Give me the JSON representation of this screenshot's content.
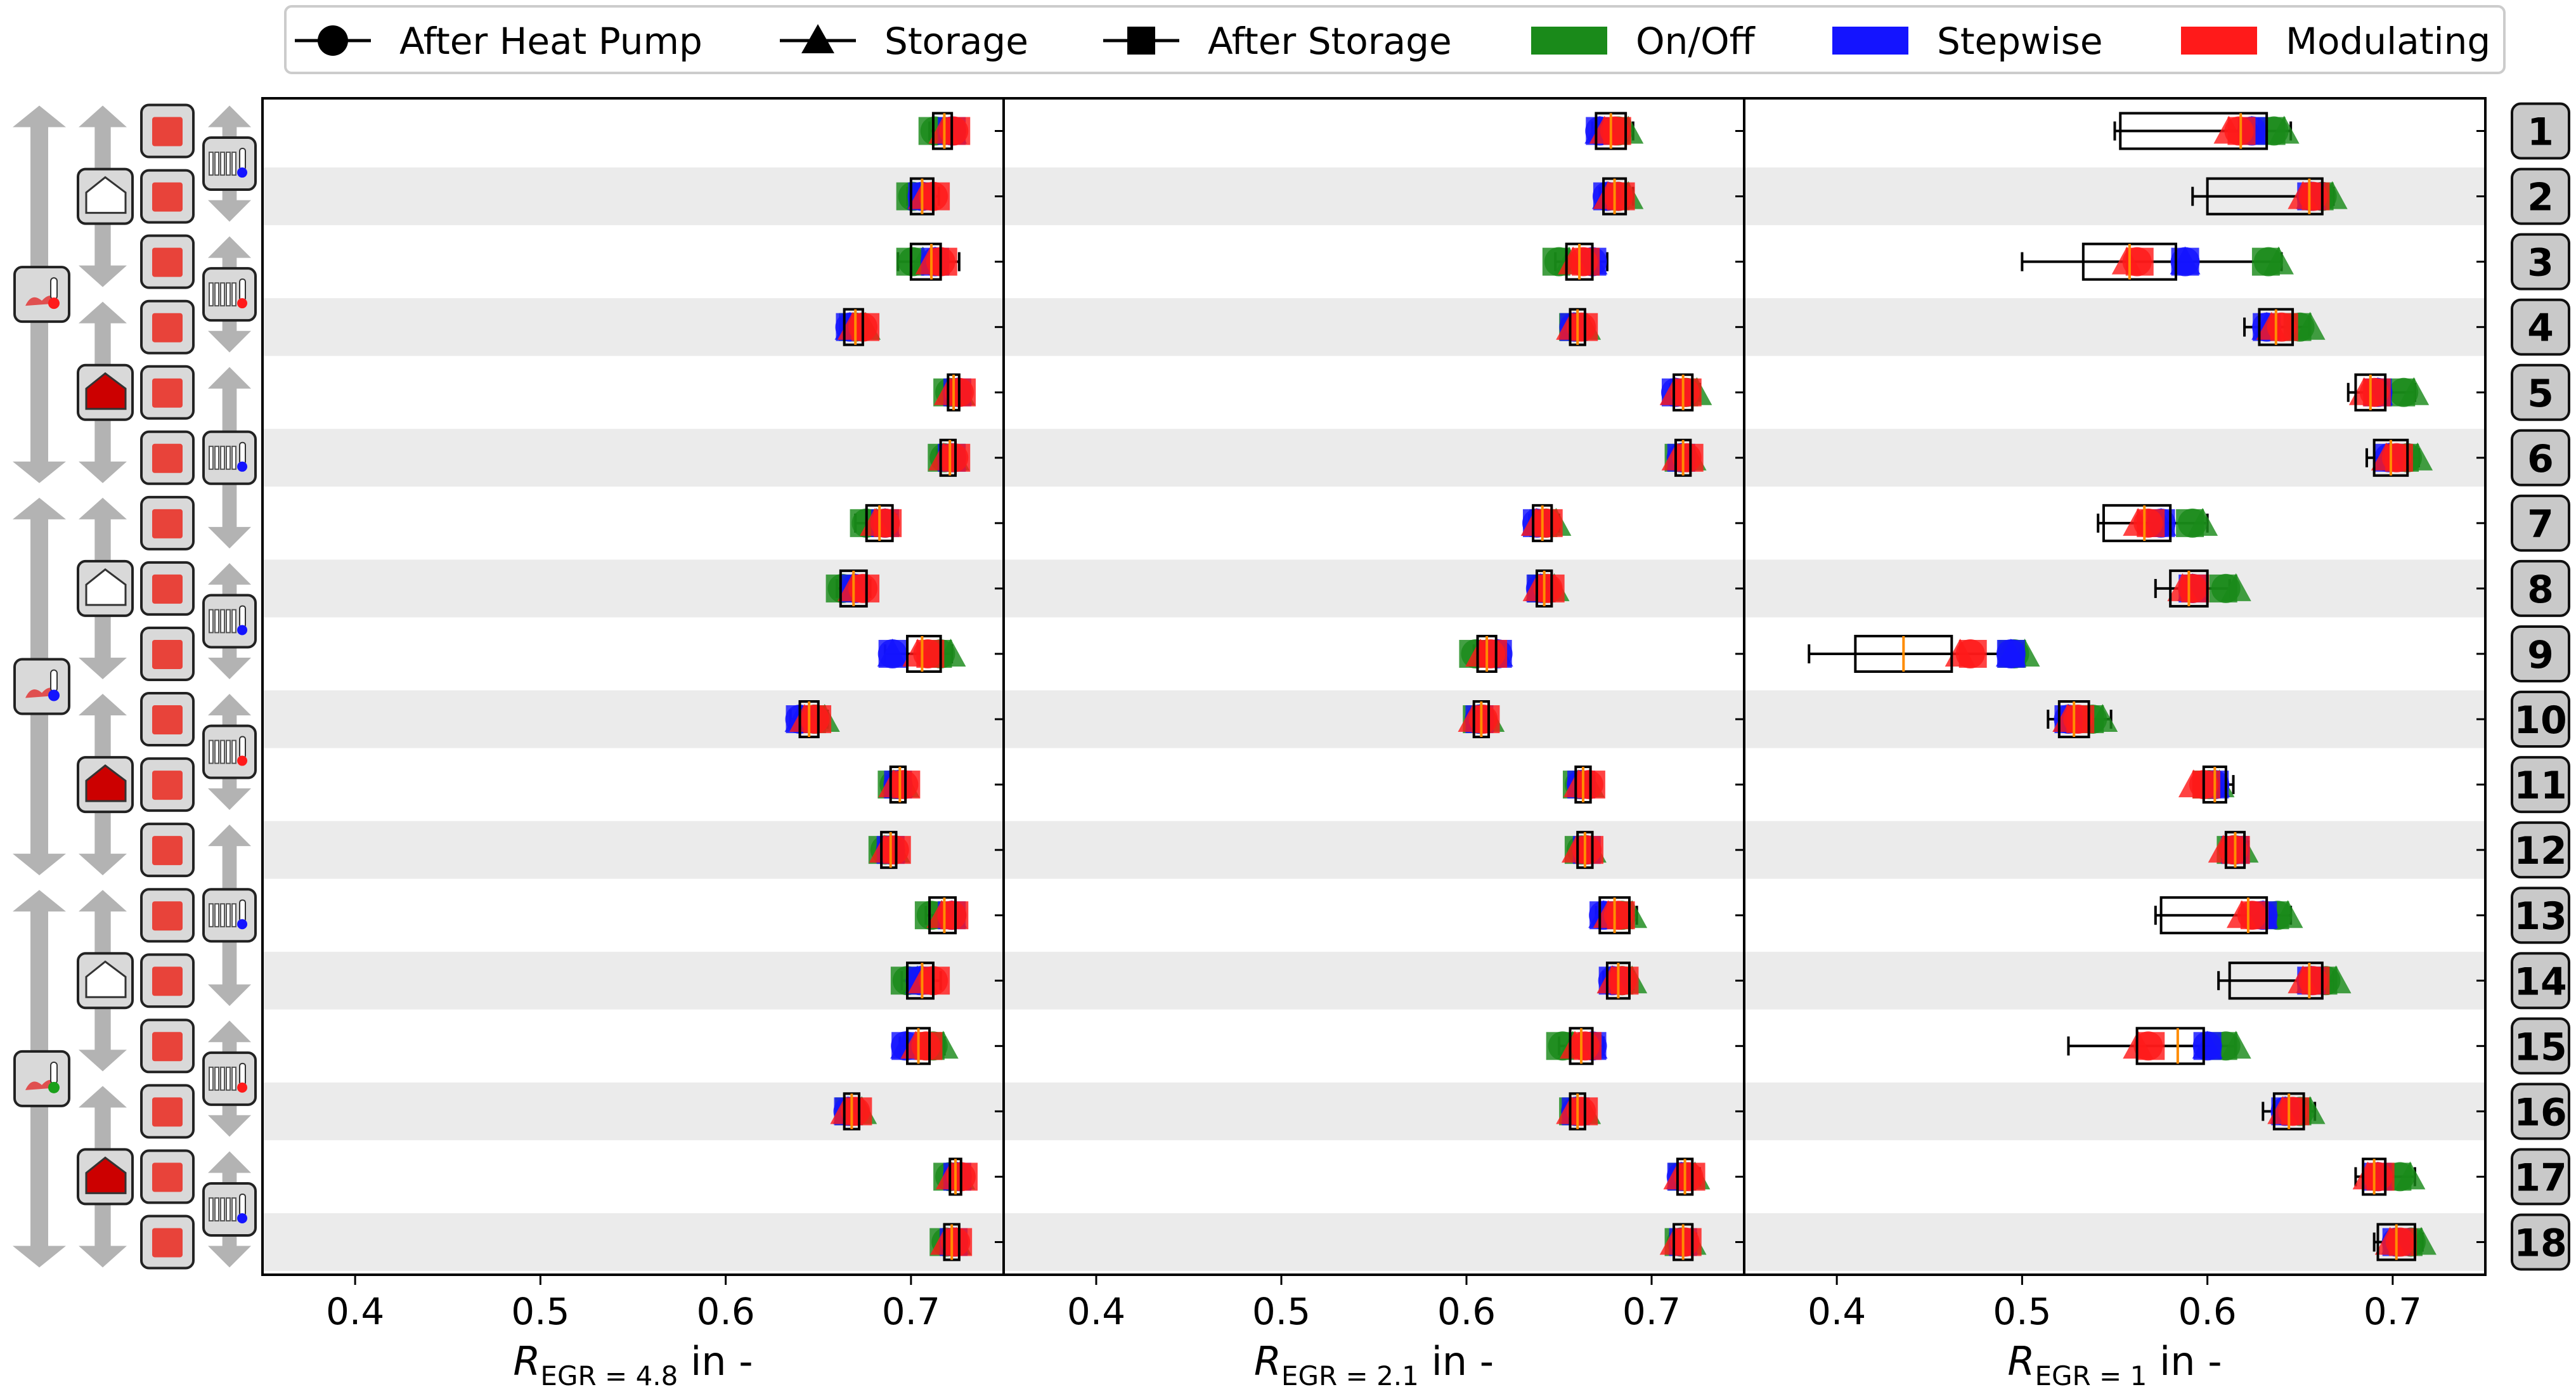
{
  "legend": {
    "markers": [
      {
        "label": "After Heat Pump",
        "marker": "circle"
      },
      {
        "label": "Storage",
        "marker": "triangle"
      },
      {
        "label": "After Storage",
        "marker": "square"
      }
    ],
    "controls": [
      {
        "label": "On/Off",
        "color": "#1a8a1a"
      },
      {
        "label": "Stepwise",
        "color": "#1414ff"
      },
      {
        "label": "Modulating",
        "color": "#ff1a1a"
      }
    ]
  },
  "colors": {
    "onoff": "#1a8a1a",
    "stepwise": "#1414ff",
    "modulating": "#ff1a1a",
    "band": "#ebebeb"
  },
  "row_labels": [
    "1",
    "2",
    "3",
    "4",
    "5",
    "6",
    "7",
    "8",
    "9",
    "10",
    "11",
    "12",
    "13",
    "14",
    "15",
    "16",
    "17",
    "18"
  ],
  "icon_column": {
    "weather": [
      "weather-cold-icon",
      "weather-cold-icon",
      "weather-mild-icon"
    ],
    "building": [
      "building-low-icon",
      "building-high-icon",
      "building-low-icon",
      "building-high-icon",
      "building-low-icon",
      "building-high-icon"
    ],
    "storage_icon": "storage-tank-icon",
    "heating": [
      "radiator-low-temp-icon",
      "radiator-high-temp-icon",
      "radiator-low-temp-icon",
      "radiator-low-temp-icon",
      "radiator-high-temp-icon",
      "radiator-low-temp-icon",
      "radiator-high-temp-icon",
      "radiator-low-temp-icon"
    ]
  },
  "chart_data": [
    {
      "type": "box-scatter",
      "xlabel": "R_EGR=4.8 in -",
      "xlabel_main": "R",
      "xlabel_sub": "EGR = 4.8",
      "xlabel_unit": " in -",
      "xlim": [
        0.35,
        0.75
      ],
      "xticks": [
        "0.4",
        "0.5",
        "0.6",
        "0.7"
      ],
      "rows": [
        {
          "box": [
            0.712,
            0.722
          ],
          "med": 0.718,
          "w": [
            0.71,
            0.726
          ],
          "onoff": 0.715,
          "stepwise": 0.722,
          "modulating": 0.721
        },
        {
          "box": [
            0.7,
            0.712
          ],
          "med": 0.706,
          "w": [
            0.698,
            0.715
          ],
          "onoff": 0.703,
          "stepwise": 0.706,
          "modulating": 0.71
        },
        {
          "box": [
            0.7,
            0.716
          ],
          "med": 0.711,
          "w": [
            0.693,
            0.726
          ],
          "onoff": 0.703,
          "stepwise": 0.713,
          "modulating": 0.714
        },
        {
          "box": [
            0.664,
            0.674
          ],
          "med": 0.67,
          "w": [
            0.662,
            0.676
          ],
          "onoff": 0.672,
          "stepwise": 0.667,
          "modulating": 0.672
        },
        {
          "box": [
            0.72,
            0.726
          ],
          "med": 0.723,
          "w": [
            0.718,
            0.728
          ],
          "onoff": 0.723,
          "stepwise": 0.725,
          "modulating": 0.724
        },
        {
          "box": [
            0.716,
            0.724
          ],
          "med": 0.721,
          "w": [
            0.714,
            0.726
          ],
          "onoff": 0.72,
          "stepwise": 0.722,
          "modulating": 0.721
        },
        {
          "box": [
            0.676,
            0.69
          ],
          "med": 0.683,
          "w": [
            0.67,
            0.692
          ],
          "onoff": 0.678,
          "stepwise": 0.686,
          "modulating": 0.684
        },
        {
          "box": [
            0.662,
            0.676
          ],
          "med": 0.669,
          "w": [
            0.66,
            0.678
          ],
          "onoff": 0.665,
          "stepwise": 0.67,
          "modulating": 0.672
        },
        {
          "box": [
            0.698,
            0.716
          ],
          "med": 0.706,
          "w": [
            0.686,
            0.722
          ],
          "onoff": 0.718,
          "stepwise": 0.69,
          "modulating": 0.707
        },
        {
          "box": [
            0.64,
            0.65
          ],
          "med": 0.645,
          "w": [
            0.635,
            0.655
          ],
          "onoff": 0.65,
          "stepwise": 0.64,
          "modulating": 0.646
        },
        {
          "box": [
            0.689,
            0.697
          ],
          "med": 0.694,
          "w": [
            0.687,
            0.699
          ],
          "onoff": 0.693,
          "stepwise": 0.693,
          "modulating": 0.694
        },
        {
          "box": [
            0.684,
            0.692
          ],
          "med": 0.689,
          "w": [
            0.683,
            0.694
          ],
          "onoff": 0.688,
          "stepwise": 0.689,
          "modulating": 0.689
        },
        {
          "box": [
            0.71,
            0.724
          ],
          "med": 0.718,
          "w": [
            0.708,
            0.727
          ],
          "onoff": 0.713,
          "stepwise": 0.722,
          "modulating": 0.72
        },
        {
          "box": [
            0.698,
            0.712
          ],
          "med": 0.706,
          "w": [
            0.695,
            0.716
          ],
          "onoff": 0.7,
          "stepwise": 0.705,
          "modulating": 0.71
        },
        {
          "box": [
            0.698,
            0.71
          ],
          "med": 0.704,
          "w": [
            0.694,
            0.718
          ],
          "onoff": 0.714,
          "stepwise": 0.697,
          "modulating": 0.706
        },
        {
          "box": [
            0.664,
            0.672
          ],
          "med": 0.668,
          "w": [
            0.662,
            0.674
          ],
          "onoff": 0.67,
          "stepwise": 0.666,
          "modulating": 0.668
        },
        {
          "box": [
            0.721,
            0.727
          ],
          "med": 0.724,
          "w": [
            0.719,
            0.729
          ],
          "onoff": 0.723,
          "stepwise": 0.725,
          "modulating": 0.725
        },
        {
          "box": [
            0.718,
            0.726
          ],
          "med": 0.722,
          "w": [
            0.716,
            0.728
          ],
          "onoff": 0.721,
          "stepwise": 0.723,
          "modulating": 0.722
        }
      ]
    },
    {
      "type": "box-scatter",
      "xlabel": "R_EGR=2.1 in -",
      "xlabel_main": "R",
      "xlabel_sub": "EGR = 2.1",
      "xlabel_unit": " in -",
      "xlim": [
        0.35,
        0.75
      ],
      "xticks": [
        "0.4",
        "0.5",
        "0.6",
        "0.7"
      ],
      "rows": [
        {
          "box": [
            0.67,
            0.686
          ],
          "med": 0.678,
          "w": [
            0.668,
            0.69
          ],
          "onoff": 0.684,
          "stepwise": 0.672,
          "modulating": 0.678
        },
        {
          "box": [
            0.674,
            0.686
          ],
          "med": 0.68,
          "w": [
            0.672,
            0.69
          ],
          "onoff": 0.684,
          "stepwise": 0.676,
          "modulating": 0.68
        },
        {
          "box": [
            0.654,
            0.668
          ],
          "med": 0.661,
          "w": [
            0.648,
            0.676
          ],
          "onoff": 0.652,
          "stepwise": 0.668,
          "modulating": 0.661
        },
        {
          "box": [
            0.656,
            0.664
          ],
          "med": 0.66,
          "w": [
            0.654,
            0.666
          ],
          "onoff": 0.661,
          "stepwise": 0.658,
          "modulating": 0.66
        },
        {
          "box": [
            0.712,
            0.722
          ],
          "med": 0.717,
          "w": [
            0.71,
            0.726
          ],
          "onoff": 0.721,
          "stepwise": 0.713,
          "modulating": 0.716
        },
        {
          "box": [
            0.713,
            0.721
          ],
          "med": 0.717,
          "w": [
            0.711,
            0.723
          ],
          "onoff": 0.718,
          "stepwise": 0.716,
          "modulating": 0.717
        },
        {
          "box": [
            0.636,
            0.646
          ],
          "med": 0.641,
          "w": [
            0.634,
            0.65
          ],
          "onoff": 0.645,
          "stepwise": 0.638,
          "modulating": 0.641
        },
        {
          "box": [
            0.638,
            0.646
          ],
          "med": 0.642,
          "w": [
            0.636,
            0.648
          ],
          "onoff": 0.644,
          "stepwise": 0.64,
          "modulating": 0.642
        },
        {
          "box": [
            0.606,
            0.616
          ],
          "med": 0.611,
          "w": [
            0.604,
            0.62
          ],
          "onoff": 0.607,
          "stepwise": 0.617,
          "modulating": 0.611
        },
        {
          "box": [
            0.604,
            0.612
          ],
          "med": 0.608,
          "w": [
            0.602,
            0.614
          ],
          "onoff": 0.609,
          "stepwise": 0.607,
          "modulating": 0.607
        },
        {
          "box": [
            0.659,
            0.667
          ],
          "med": 0.663,
          "w": [
            0.657,
            0.669
          ],
          "onoff": 0.663,
          "stepwise": 0.662,
          "modulating": 0.664
        },
        {
          "box": [
            0.66,
            0.668
          ],
          "med": 0.664,
          "w": [
            0.658,
            0.67
          ],
          "onoff": 0.664,
          "stepwise": 0.665,
          "modulating": 0.663
        },
        {
          "box": [
            0.672,
            0.688
          ],
          "med": 0.68,
          "w": [
            0.67,
            0.692
          ],
          "onoff": 0.686,
          "stepwise": 0.674,
          "modulating": 0.68
        },
        {
          "box": [
            0.676,
            0.688
          ],
          "med": 0.682,
          "w": [
            0.674,
            0.69
          ],
          "onoff": 0.686,
          "stepwise": 0.679,
          "modulating": 0.682
        },
        {
          "box": [
            0.656,
            0.668
          ],
          "med": 0.662,
          "w": [
            0.65,
            0.674
          ],
          "onoff": 0.654,
          "stepwise": 0.668,
          "modulating": 0.662
        },
        {
          "box": [
            0.656,
            0.664
          ],
          "med": 0.66,
          "w": [
            0.654,
            0.666
          ],
          "onoff": 0.661,
          "stepwise": 0.659,
          "modulating": 0.66
        },
        {
          "box": [
            0.714,
            0.722
          ],
          "med": 0.718,
          "w": [
            0.712,
            0.726
          ],
          "onoff": 0.72,
          "stepwise": 0.716,
          "modulating": 0.718
        },
        {
          "box": [
            0.712,
            0.722
          ],
          "med": 0.717,
          "w": [
            0.71,
            0.724
          ],
          "onoff": 0.718,
          "stepwise": 0.717,
          "modulating": 0.716
        }
      ]
    },
    {
      "type": "box-scatter",
      "xlabel": "R_EGR=1 in -",
      "xlabel_main": "R",
      "xlabel_sub": "EGR = 1",
      "xlabel_unit": " in -",
      "xlim": [
        0.35,
        0.75
      ],
      "xticks": [
        "0.4",
        "0.5",
        "0.6",
        "0.7"
      ],
      "rows": [
        {
          "box": [
            0.553,
            0.632
          ],
          "med": 0.618,
          "w": [
            0.55,
            0.645
          ],
          "onoff": 0.638,
          "stepwise": 0.624,
          "modulating": 0.615
        },
        {
          "box": [
            0.6,
            0.662
          ],
          "med": 0.655,
          "w": [
            0.592,
            0.668
          ],
          "onoff": 0.664,
          "stepwise": 0.656,
          "modulating": 0.655
        },
        {
          "box": [
            0.533,
            0.583
          ],
          "med": 0.558,
          "w": [
            0.5,
            0.64
          ],
          "onoff": 0.635,
          "stepwise": 0.588,
          "modulating": 0.56
        },
        {
          "box": [
            0.628,
            0.646
          ],
          "med": 0.637,
          "w": [
            0.62,
            0.655
          ],
          "onoff": 0.652,
          "stepwise": 0.632,
          "modulating": 0.638
        },
        {
          "box": [
            0.68,
            0.696
          ],
          "med": 0.688,
          "w": [
            0.676,
            0.712
          ],
          "onoff": 0.708,
          "stepwise": 0.692,
          "modulating": 0.688
        },
        {
          "box": [
            0.69,
            0.708
          ],
          "med": 0.699,
          "w": [
            0.686,
            0.714
          ],
          "onoff": 0.71,
          "stepwise": 0.698,
          "modulating": 0.7
        },
        {
          "box": [
            0.544,
            0.58
          ],
          "med": 0.566,
          "w": [
            0.541,
            0.6
          ],
          "onoff": 0.594,
          "stepwise": 0.575,
          "modulating": 0.566
        },
        {
          "box": [
            0.58,
            0.6
          ],
          "med": 0.59,
          "w": [
            0.572,
            0.612
          ],
          "onoff": 0.612,
          "stepwise": 0.592,
          "modulating": 0.59
        },
        {
          "box": [
            0.41,
            0.462
          ],
          "med": 0.436,
          "w": [
            0.385,
            0.5
          ],
          "onoff": 0.498,
          "stepwise": 0.494,
          "modulating": 0.47
        },
        {
          "box": [
            0.52,
            0.536
          ],
          "med": 0.528,
          "w": [
            0.514,
            0.548
          ],
          "onoff": 0.54,
          "stepwise": 0.525,
          "modulating": 0.528
        },
        {
          "box": [
            0.598,
            0.61
          ],
          "med": 0.604,
          "w": [
            0.594,
            0.614
          ],
          "onoff": 0.603,
          "stepwise": 0.604,
          "modulating": 0.596
        },
        {
          "box": [
            0.61,
            0.62
          ],
          "med": 0.615,
          "w": [
            0.608,
            0.622
          ],
          "onoff": 0.616,
          "stepwise": 0.615,
          "modulating": 0.612
        },
        {
          "box": [
            0.575,
            0.632
          ],
          "med": 0.622,
          "w": [
            0.572,
            0.645
          ],
          "onoff": 0.64,
          "stepwise": 0.63,
          "modulating": 0.622
        },
        {
          "box": [
            0.612,
            0.662
          ],
          "med": 0.655,
          "w": [
            0.606,
            0.668
          ],
          "onoff": 0.666,
          "stepwise": 0.656,
          "modulating": 0.655
        },
        {
          "box": [
            0.562,
            0.598
          ],
          "med": 0.584,
          "w": [
            0.525,
            0.615
          ],
          "onoff": 0.612,
          "stepwise": 0.6,
          "modulating": 0.566
        },
        {
          "box": [
            0.636,
            0.652
          ],
          "med": 0.644,
          "w": [
            0.63,
            0.658
          ],
          "onoff": 0.652,
          "stepwise": 0.642,
          "modulating": 0.644
        },
        {
          "box": [
            0.684,
            0.696
          ],
          "med": 0.69,
          "w": [
            0.68,
            0.712
          ],
          "onoff": 0.706,
          "stepwise": 0.692,
          "modulating": 0.69
        },
        {
          "box": [
            0.692,
            0.712
          ],
          "med": 0.702,
          "w": [
            0.69,
            0.716
          ],
          "onoff": 0.712,
          "stepwise": 0.702,
          "modulating": 0.702
        }
      ]
    }
  ]
}
